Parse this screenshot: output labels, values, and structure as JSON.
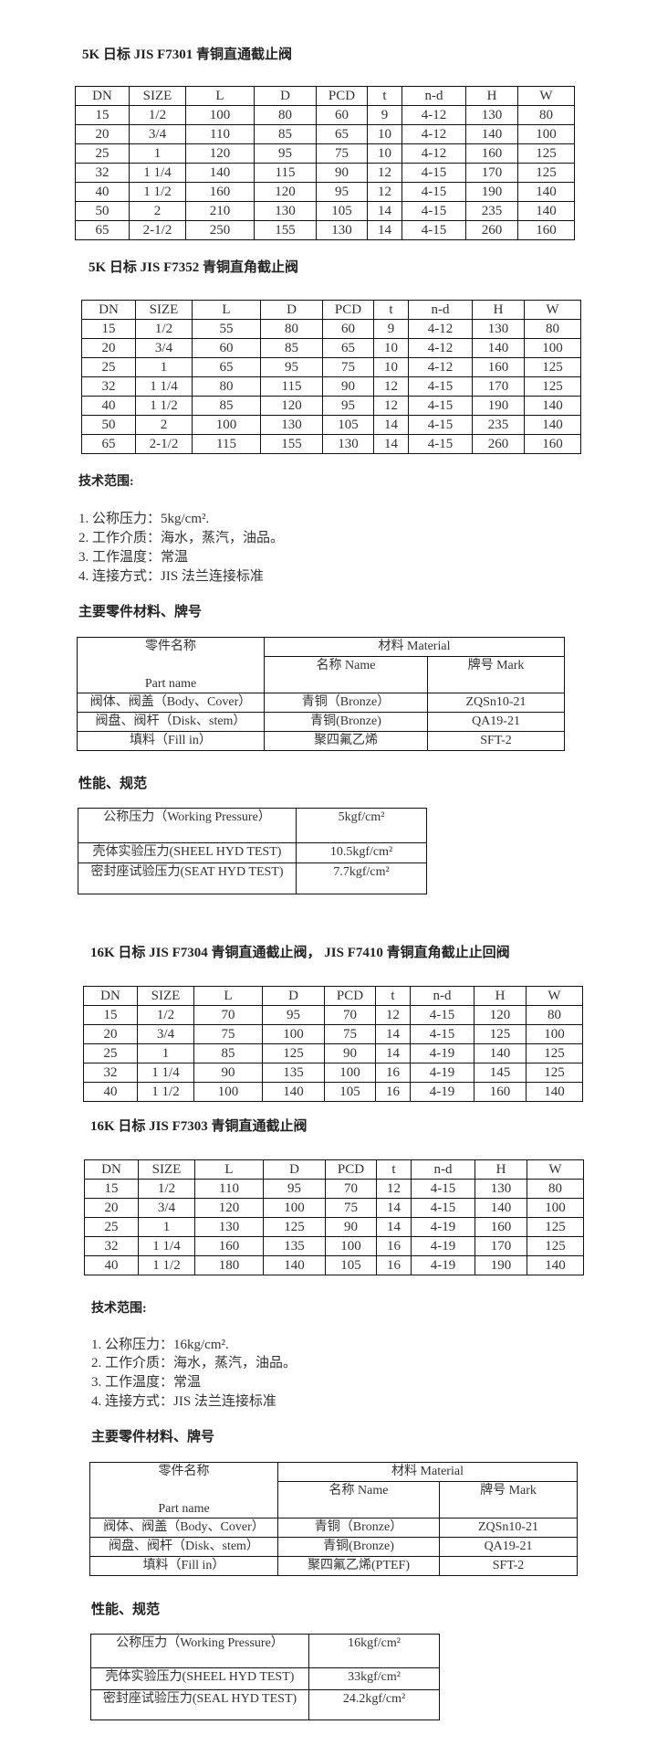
{
  "sections": [
    {
      "title": "5K 日标 JIS F7301 青铜直通截止阀",
      "headers": [
        "DN",
        "SIZE",
        "L",
        "D",
        "PCD",
        "t",
        "n-d",
        "H",
        "W"
      ],
      "rows": [
        [
          "15",
          "1/2",
          "100",
          "80",
          "60",
          "9",
          "4-12",
          "130",
          "80"
        ],
        [
          "20",
          "3/4",
          "110",
          "85",
          "65",
          "10",
          "4-12",
          "140",
          "100"
        ],
        [
          "25",
          "1",
          "120",
          "95",
          "75",
          "10",
          "4-12",
          "160",
          "125"
        ],
        [
          "32",
          "1 1/4",
          "140",
          "115",
          "90",
          "12",
          "4-15",
          "170",
          "125"
        ],
        [
          "40",
          "1 1/2",
          "160",
          "120",
          "95",
          "12",
          "4-15",
          "190",
          "140"
        ],
        [
          "50",
          "2",
          "210",
          "130",
          "105",
          "14",
          "4-15",
          "235",
          "140"
        ],
        [
          "65",
          "2-1/2",
          "250",
          "155",
          "130",
          "14",
          "4-15",
          "260",
          "160"
        ]
      ]
    },
    {
      "title": "5K 日标 JIS F7352 青铜直角截止阀",
      "headers": [
        "DN",
        "SIZE",
        "L",
        "D",
        "PCD",
        "t",
        "n-d",
        "H",
        "W"
      ],
      "rows": [
        [
          "15",
          "1/2",
          "55",
          "80",
          "60",
          "9",
          "4-12",
          "130",
          "80"
        ],
        [
          "20",
          "3/4",
          "60",
          "85",
          "65",
          "10",
          "4-12",
          "140",
          "100"
        ],
        [
          "25",
          "1",
          "65",
          "95",
          "75",
          "10",
          "4-12",
          "160",
          "125"
        ],
        [
          "32",
          "1 1/4",
          "80",
          "115",
          "90",
          "12",
          "4-15",
          "170",
          "125"
        ],
        [
          "40",
          "1 1/2",
          "85",
          "120",
          "95",
          "12",
          "4-15",
          "190",
          "140"
        ],
        [
          "50",
          "2",
          "100",
          "130",
          "105",
          "14",
          "4-15",
          "235",
          "140"
        ],
        [
          "65",
          "2-1/2",
          "115",
          "155",
          "130",
          "14",
          "4-15",
          "260",
          "160"
        ]
      ]
    },
    {
      "title": "16K 日标 JIS F7304 青铜直通截止阀， JIS F7410 青铜直角截止止回阀",
      "headers": [
        "DN",
        "SIZE",
        "L",
        "D",
        "PCD",
        "t",
        "n-d",
        "H",
        "W"
      ],
      "rows": [
        [
          "15",
          "1/2",
          "70",
          "95",
          "70",
          "12",
          "4-15",
          "120",
          "80"
        ],
        [
          "20",
          "3/4",
          "75",
          "100",
          "75",
          "14",
          "4-15",
          "125",
          "100"
        ],
        [
          "25",
          "1",
          "85",
          "125",
          "90",
          "14",
          "4-19",
          "140",
          "125"
        ],
        [
          "32",
          "1 1/4",
          "90",
          "135",
          "100",
          "16",
          "4-19",
          "145",
          "125"
        ],
        [
          "40",
          "1 1/2",
          "100",
          "140",
          "105",
          "16",
          "4-19",
          "160",
          "140"
        ]
      ]
    },
    {
      "title": "16K 日标 JIS F7303 青铜直通截止阀",
      "headers": [
        "DN",
        "SIZE",
        "L",
        "D",
        "PCD",
        "t",
        "n-d",
        "H",
        "W"
      ],
      "rows": [
        [
          "15",
          "1/2",
          "110",
          "95",
          "70",
          "12",
          "4-15",
          "130",
          "80"
        ],
        [
          "20",
          "3/4",
          "120",
          "100",
          "75",
          "14",
          "4-15",
          "140",
          "100"
        ],
        [
          "25",
          "1",
          "130",
          "125",
          "90",
          "14",
          "4-19",
          "160",
          "125"
        ],
        [
          "32",
          "1 1/4",
          "160",
          "135",
          "100",
          "16",
          "4-19",
          "170",
          "125"
        ],
        [
          "40",
          "1 1/2",
          "180",
          "140",
          "105",
          "16",
          "4-19",
          "190",
          "140"
        ]
      ]
    }
  ],
  "specs": [
    {
      "tech_heading": "技术范围:",
      "tech_items": [
        "1.  公称压力：5kg/cm².",
        "2.  工作介质：海水，蒸汽，油品。",
        "3.  工作温度：常温",
        "4.  连接方式：JIS 法兰连接标准"
      ],
      "materials_heading": "主要零件材料、牌号",
      "materials": {
        "part_cn": "零件名称",
        "part_en": "Part name",
        "material": "材料   Material",
        "name_col": "名称 Name",
        "mark_col": "牌号 Mark",
        "rows": [
          [
            "阀体、阀盖（Body、Cover）",
            "青铜（Bronze）",
            "ZQSn10-21"
          ],
          [
            "阀盘、阀杆（Disk、stem）",
            "青铜(Bronze)",
            "QA19-21"
          ],
          [
            "填料（Fill in）",
            "聚四氟乙烯",
            "SFT-2"
          ]
        ]
      },
      "perf_heading": "性能、规范",
      "perf": [
        [
          "公称压力（Working Pressure）",
          "5kgf/cm²"
        ],
        [
          "壳体实验压力(SHEEL HYD TEST)",
          "10.5kgf/cm²"
        ],
        [
          "密封座试验压力(SEAT HYD TEST)",
          "7.7kgf/cm²"
        ]
      ]
    },
    {
      "tech_heading": "技术范围:",
      "tech_items": [
        "1.  公称压力：16kg/cm².",
        "2.  工作介质：海水，蒸汽，油品。",
        "3.  工作温度：常温",
        "4.  连接方式：JIS 法兰连接标准"
      ],
      "materials_heading": "主要零件材料、牌号",
      "materials": {
        "part_cn": "零件名称",
        "part_en": "Part name",
        "material": "材料   Material",
        "name_col": "名称 Name",
        "mark_col": "牌号 Mark",
        "rows": [
          [
            "阀体、阀盖（Body、Cover）",
            "青铜（Bronze）",
            "ZQSn10-21"
          ],
          [
            "阀盘、阀杆（Disk、stem）",
            "青铜(Bronze)",
            "QA19-21"
          ],
          [
            "填料（Fill in）",
            "聚四氟乙烯(PTEF)",
            "SFT-2"
          ]
        ]
      },
      "perf_heading": "性能、规范",
      "perf": [
        [
          "公称压力（Working Pressure）",
          "16kgf/cm²"
        ],
        [
          "壳体实验压力(SHEEL HYD TEST)",
          "33kgf/cm²"
        ],
        [
          "密封座试验压力(SEAL HYD TEST)",
          "24.2kgf/cm²"
        ]
      ]
    }
  ]
}
